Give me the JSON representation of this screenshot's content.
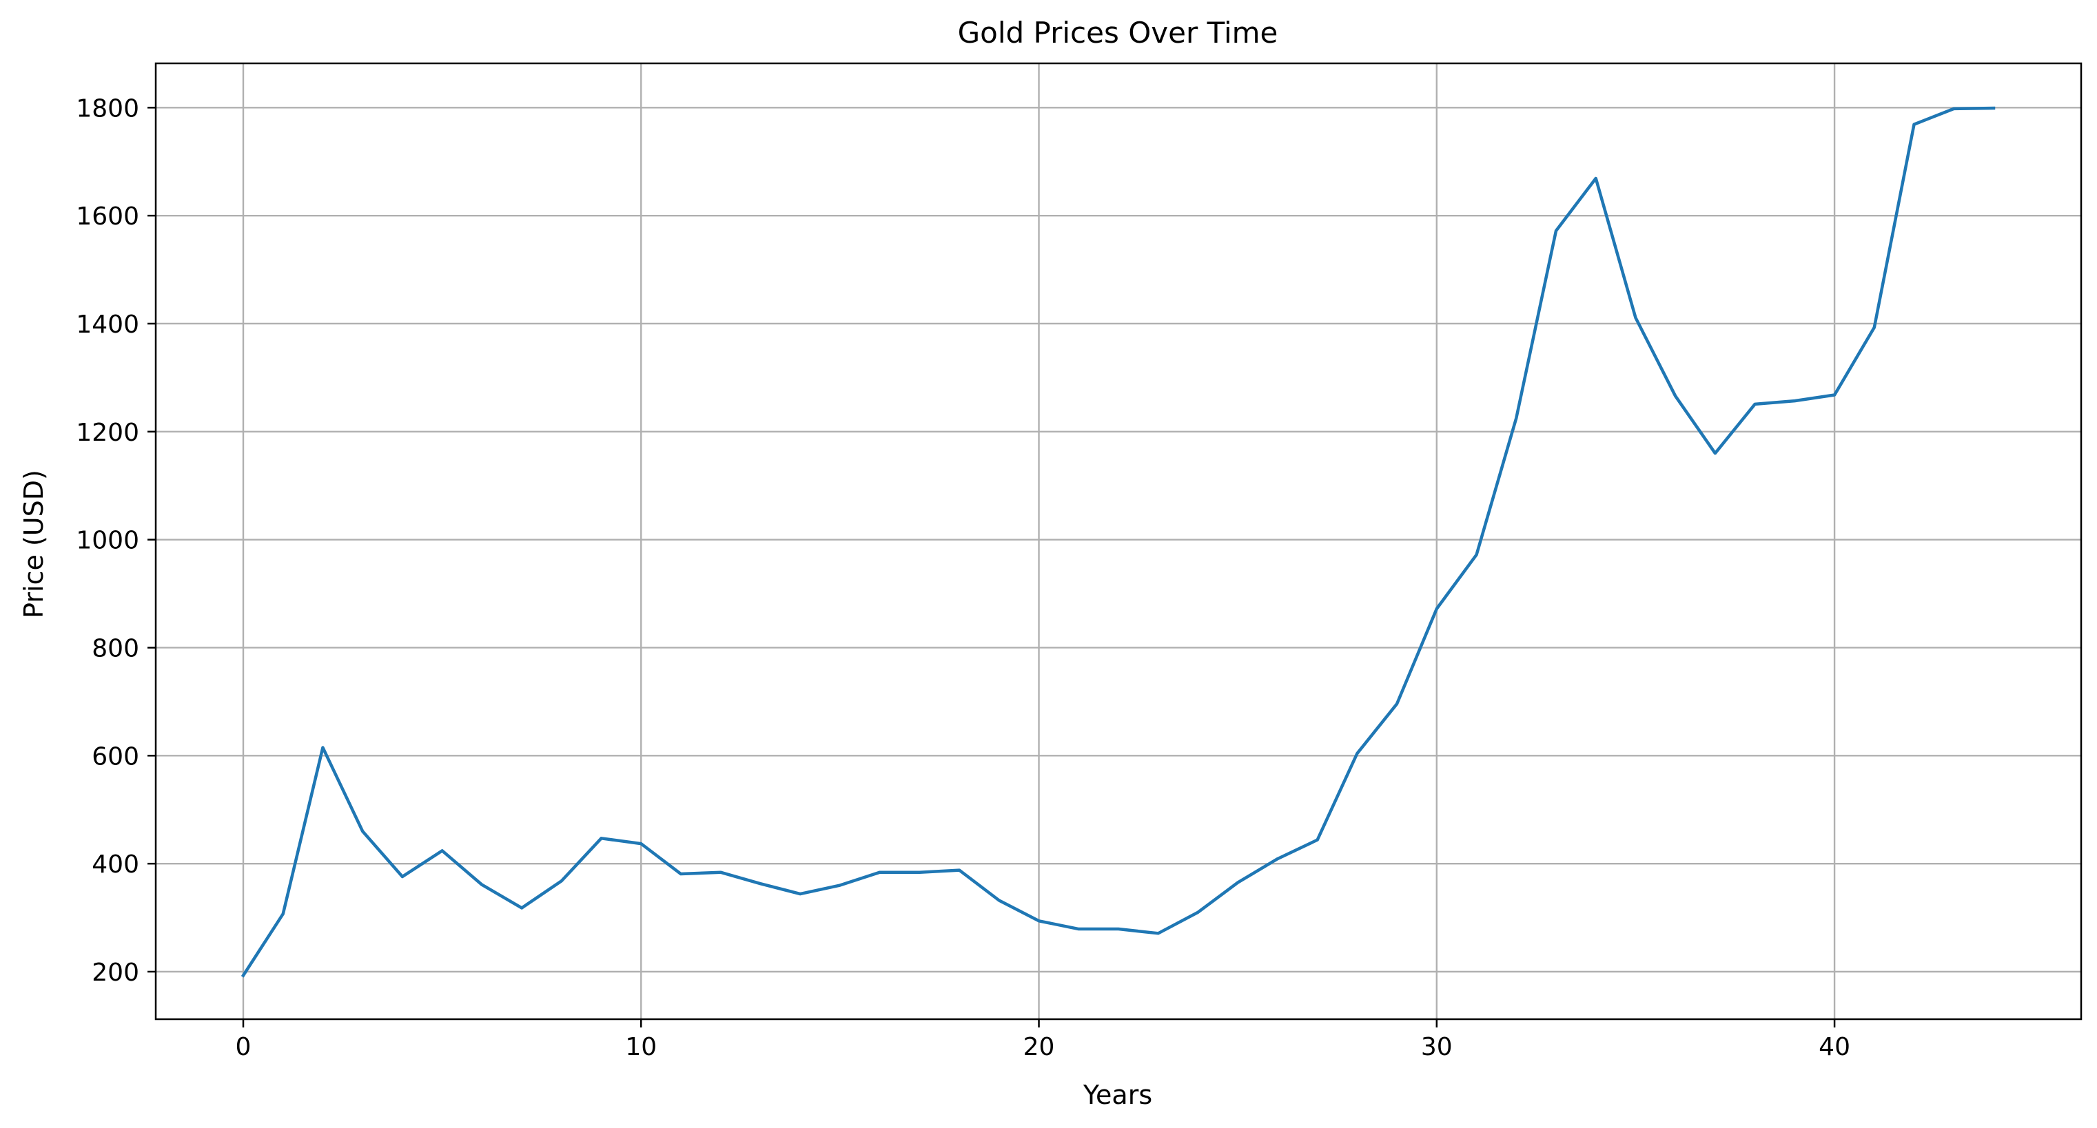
{
  "chart_data": {
    "type": "line",
    "title": "Gold Prices Over Time",
    "xlabel": "Years",
    "ylabel": "Price (USD)",
    "xlim": [
      -2.2,
      46.2
    ],
    "ylim": [
      112,
      1882
    ],
    "xticks": [
      0,
      10,
      20,
      30,
      40
    ],
    "yticks": [
      200,
      400,
      600,
      800,
      1000,
      1200,
      1400,
      1600,
      1800
    ],
    "grid": true,
    "series": [
      {
        "color": "#1f77b4",
        "x": [
          0,
          1,
          2,
          3,
          4,
          5,
          6,
          7,
          8,
          9,
          10,
          11,
          12,
          13,
          14,
          15,
          16,
          17,
          18,
          19,
          20,
          21,
          22,
          23,
          24,
          25,
          26,
          27,
          28,
          29,
          30,
          31,
          32,
          33,
          34,
          35,
          36,
          37,
          38,
          39,
          40,
          41,
          42,
          43,
          44
        ],
        "values": [
          193,
          307,
          615,
          460,
          376,
          424,
          361,
          318,
          368,
          447,
          437,
          381,
          384,
          363,
          344,
          360,
          384,
          384,
          388,
          332,
          294,
          279,
          279,
          271,
          310,
          365,
          409,
          444,
          604,
          696,
          872,
          972,
          1225,
          1572,
          1669,
          1411,
          1266,
          1160,
          1251,
          1257,
          1268,
          1393,
          1769,
          1798,
          1799
        ]
      }
    ]
  }
}
